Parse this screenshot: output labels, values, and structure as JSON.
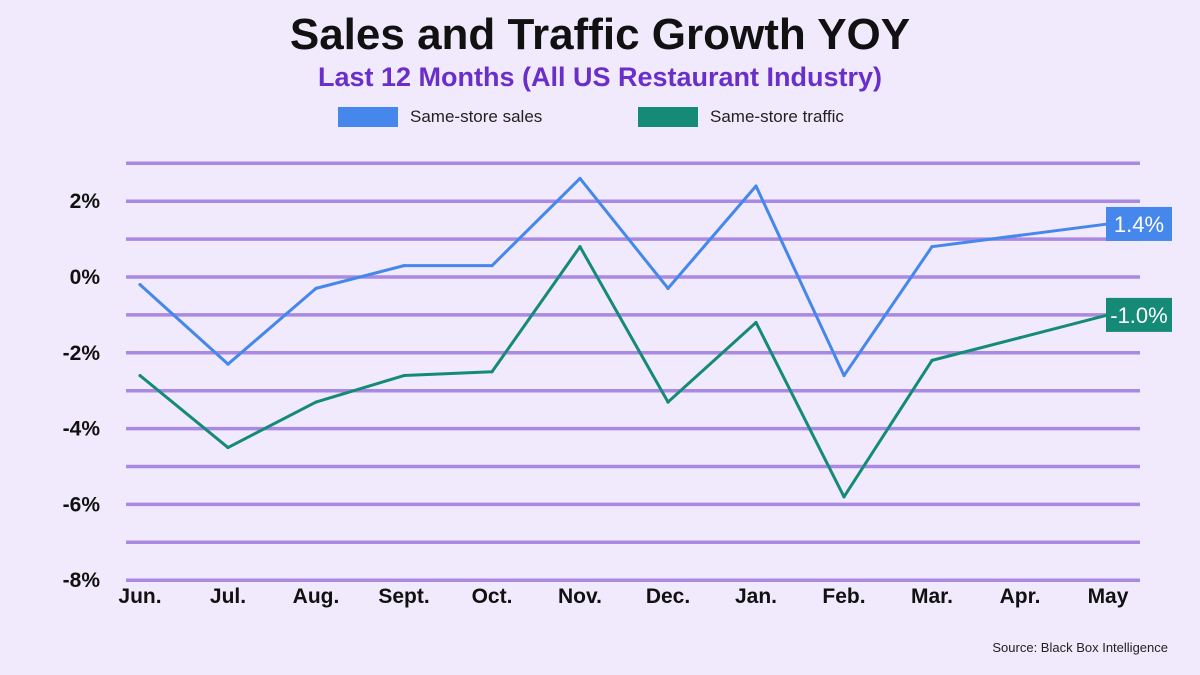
{
  "header": {
    "title": "Sales and Traffic Growth YOY",
    "subtitle": "Last 12 Months (All US Restaurant Industry)"
  },
  "source": "Source: Black Box Intelligence",
  "colors": {
    "sales": "#4587ea",
    "traffic": "#158a77",
    "grid": "#a989e2",
    "title": "#111111",
    "subtitle": "#6a2fc8",
    "background": "#f0eafc"
  },
  "chart_data": {
    "type": "line",
    "title": "Sales and Traffic Growth YOY",
    "subtitle": "Last 12 Months (All US Restaurant Industry)",
    "categories": [
      "Jun.",
      "Jul.",
      "Aug.",
      "Sept.",
      "Oct.",
      "Nov.",
      "Dec.",
      "Jan.",
      "Feb.",
      "Mar.",
      "Apr.",
      "May"
    ],
    "series": [
      {
        "name": "Same-store sales",
        "values": [
          -0.2,
          -2.3,
          -0.3,
          0.3,
          0.3,
          2.6,
          -0.3,
          2.4,
          -2.6,
          0.8,
          1.1,
          1.4
        ],
        "end_label": "1.4%"
      },
      {
        "name": "Same-store traffic",
        "values": [
          -2.6,
          -4.5,
          -3.3,
          -2.6,
          -2.5,
          0.8,
          -3.3,
          -1.2,
          -5.8,
          -2.2,
          -1.6,
          -1.0
        ],
        "end_label": "-1.0%"
      }
    ],
    "ylim": [
      -8,
      3
    ],
    "yticks": [
      2,
      0,
      -2,
      -4,
      -6,
      -8
    ],
    "ytick_labels": [
      "2%",
      "0%",
      "-2%",
      "-4%",
      "-6%",
      "-8%"
    ],
    "grid": true,
    "legend": "top-center",
    "xlabel": "",
    "ylabel": ""
  }
}
